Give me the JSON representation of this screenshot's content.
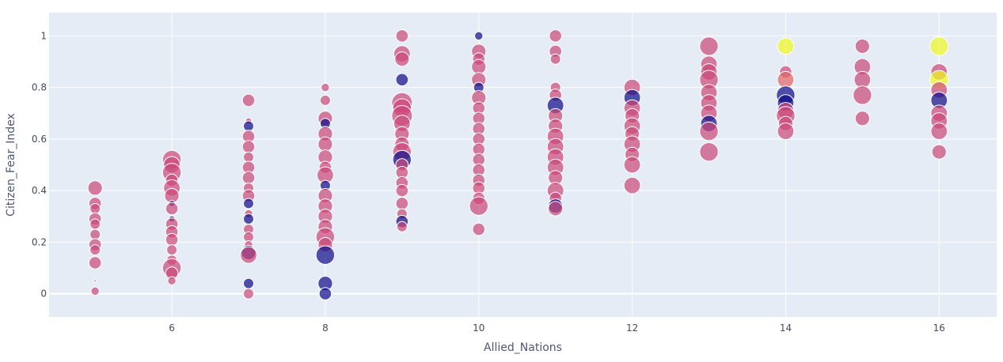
{
  "chart_data": {
    "type": "scatter",
    "xlabel": "Allied_Nations",
    "ylabel": "Citizen_Fear_Index",
    "xlim": [
      4.4,
      16.75
    ],
    "ylim": [
      -0.09,
      1.09
    ],
    "x_ticks": [
      6,
      8,
      10,
      12,
      14,
      16
    ],
    "x_tick_labels": [
      "6",
      "8",
      "10",
      "12",
      "14",
      "16"
    ],
    "y_ticks": [
      0,
      0.2,
      0.4,
      0.6,
      0.8,
      1
    ],
    "y_tick_labels": [
      "0",
      "0.2",
      "0.4",
      "0.6",
      "0.8",
      "1"
    ],
    "grid": true,
    "legend": "none",
    "colors": {
      "background": "#e5ecf6",
      "grid": "#ffffff",
      "pink": "#cc4778",
      "navy": "#0d0887",
      "yellow": "#f0f921",
      "orange": "#e16462"
    },
    "marker_size_range_px": "size encodes a hidden numeric variable",
    "points": [
      {
        "x": 5,
        "y": 0.41,
        "s": 0.7,
        "c": "pink"
      },
      {
        "x": 5,
        "y": 0.35,
        "s": 0.6,
        "c": "pink"
      },
      {
        "x": 5,
        "y": 0.33,
        "s": 0.5,
        "c": "pink"
      },
      {
        "x": 5,
        "y": 0.29,
        "s": 0.6,
        "c": "pink"
      },
      {
        "x": 5,
        "y": 0.27,
        "s": 0.5,
        "c": "pink"
      },
      {
        "x": 5,
        "y": 0.23,
        "s": 0.5,
        "c": "pink"
      },
      {
        "x": 5,
        "y": 0.19,
        "s": 0.6,
        "c": "pink"
      },
      {
        "x": 5,
        "y": 0.17,
        "s": 0.5,
        "c": "pink"
      },
      {
        "x": 5,
        "y": 0.12,
        "s": 0.6,
        "c": "pink"
      },
      {
        "x": 5,
        "y": 0.05,
        "s": 0.1,
        "c": "pink"
      },
      {
        "x": 5,
        "y": 0.01,
        "s": 0.4,
        "c": "pink"
      },
      {
        "x": 6,
        "y": 0.52,
        "s": 0.9,
        "c": "pink"
      },
      {
        "x": 6,
        "y": 0.5,
        "s": 0.8,
        "c": "pink"
      },
      {
        "x": 6,
        "y": 0.47,
        "s": 0.9,
        "c": "pink"
      },
      {
        "x": 6,
        "y": 0.44,
        "s": 0.6,
        "c": "pink"
      },
      {
        "x": 6,
        "y": 0.41,
        "s": 0.8,
        "c": "pink"
      },
      {
        "x": 6,
        "y": 0.38,
        "s": 0.7,
        "c": "pink"
      },
      {
        "x": 6,
        "y": 0.35,
        "s": 0.3,
        "c": "navy"
      },
      {
        "x": 6,
        "y": 0.33,
        "s": 0.6,
        "c": "pink"
      },
      {
        "x": 6,
        "y": 0.29,
        "s": 0.3,
        "c": "navy"
      },
      {
        "x": 6,
        "y": 0.27,
        "s": 0.6,
        "c": "pink"
      },
      {
        "x": 6,
        "y": 0.24,
        "s": 0.6,
        "c": "pink"
      },
      {
        "x": 6,
        "y": 0.21,
        "s": 0.6,
        "c": "pink"
      },
      {
        "x": 6,
        "y": 0.17,
        "s": 0.5,
        "c": "pink"
      },
      {
        "x": 6,
        "y": 0.13,
        "s": 0.5,
        "c": "pink"
      },
      {
        "x": 6,
        "y": 0.1,
        "s": 0.9,
        "c": "pink"
      },
      {
        "x": 6,
        "y": 0.08,
        "s": 0.6,
        "c": "pink"
      },
      {
        "x": 6,
        "y": 0.05,
        "s": 0.4,
        "c": "pink"
      },
      {
        "x": 7,
        "y": 0.75,
        "s": 0.6,
        "c": "pink"
      },
      {
        "x": 7,
        "y": 0.67,
        "s": 0.3,
        "c": "pink"
      },
      {
        "x": 7,
        "y": 0.65,
        "s": 0.5,
        "c": "navy"
      },
      {
        "x": 7,
        "y": 0.61,
        "s": 0.6,
        "c": "pink"
      },
      {
        "x": 7,
        "y": 0.57,
        "s": 0.6,
        "c": "pink"
      },
      {
        "x": 7,
        "y": 0.53,
        "s": 0.5,
        "c": "pink"
      },
      {
        "x": 7,
        "y": 0.49,
        "s": 0.6,
        "c": "pink"
      },
      {
        "x": 7,
        "y": 0.45,
        "s": 0.6,
        "c": "pink"
      },
      {
        "x": 7,
        "y": 0.41,
        "s": 0.5,
        "c": "pink"
      },
      {
        "x": 7,
        "y": 0.38,
        "s": 0.6,
        "c": "pink"
      },
      {
        "x": 7,
        "y": 0.35,
        "s": 0.5,
        "c": "navy"
      },
      {
        "x": 7,
        "y": 0.31,
        "s": 0.4,
        "c": "pink"
      },
      {
        "x": 7,
        "y": 0.29,
        "s": 0.5,
        "c": "navy"
      },
      {
        "x": 7,
        "y": 0.25,
        "s": 0.5,
        "c": "pink"
      },
      {
        "x": 7,
        "y": 0.22,
        "s": 0.5,
        "c": "pink"
      },
      {
        "x": 7,
        "y": 0.19,
        "s": 0.4,
        "c": "pink"
      },
      {
        "x": 7,
        "y": 0.16,
        "s": 0.7,
        "c": "navy"
      },
      {
        "x": 7,
        "y": 0.15,
        "s": 0.8,
        "c": "pink"
      },
      {
        "x": 7,
        "y": 0.04,
        "s": 0.5,
        "c": "navy"
      },
      {
        "x": 7,
        "y": 0.0,
        "s": 0.5,
        "c": "pink"
      },
      {
        "x": 8,
        "y": 0.8,
        "s": 0.4,
        "c": "pink"
      },
      {
        "x": 8,
        "y": 0.75,
        "s": 0.5,
        "c": "pink"
      },
      {
        "x": 8,
        "y": 0.68,
        "s": 0.7,
        "c": "pink"
      },
      {
        "x": 8,
        "y": 0.66,
        "s": 0.5,
        "c": "navy"
      },
      {
        "x": 8,
        "y": 0.62,
        "s": 0.7,
        "c": "pink"
      },
      {
        "x": 8,
        "y": 0.58,
        "s": 0.7,
        "c": "pink"
      },
      {
        "x": 8,
        "y": 0.53,
        "s": 0.7,
        "c": "pink"
      },
      {
        "x": 8,
        "y": 0.49,
        "s": 0.6,
        "c": "pink"
      },
      {
        "x": 8,
        "y": 0.46,
        "s": 0.8,
        "c": "pink"
      },
      {
        "x": 8,
        "y": 0.42,
        "s": 0.5,
        "c": "navy"
      },
      {
        "x": 8,
        "y": 0.38,
        "s": 0.7,
        "c": "pink"
      },
      {
        "x": 8,
        "y": 0.34,
        "s": 0.7,
        "c": "pink"
      },
      {
        "x": 8,
        "y": 0.3,
        "s": 0.7,
        "c": "pink"
      },
      {
        "x": 8,
        "y": 0.26,
        "s": 0.7,
        "c": "pink"
      },
      {
        "x": 8,
        "y": 0.22,
        "s": 0.9,
        "c": "pink"
      },
      {
        "x": 8,
        "y": 0.19,
        "s": 0.7,
        "c": "pink"
      },
      {
        "x": 8,
        "y": 0.15,
        "s": 0.9,
        "c": "navy"
      },
      {
        "x": 8,
        "y": 0.04,
        "s": 0.7,
        "c": "navy"
      },
      {
        "x": 8,
        "y": 0.0,
        "s": 0.6,
        "c": "navy"
      },
      {
        "x": 9,
        "y": 1.0,
        "s": 0.6,
        "c": "pink"
      },
      {
        "x": 9,
        "y": 0.93,
        "s": 0.8,
        "c": "pink"
      },
      {
        "x": 9,
        "y": 0.91,
        "s": 0.7,
        "c": "pink"
      },
      {
        "x": 9,
        "y": 0.83,
        "s": 0.6,
        "c": "navy"
      },
      {
        "x": 9,
        "y": 0.74,
        "s": 1.0,
        "c": "pink"
      },
      {
        "x": 9,
        "y": 0.72,
        "s": 0.9,
        "c": "pink"
      },
      {
        "x": 9,
        "y": 0.69,
        "s": 1.0,
        "c": "pink"
      },
      {
        "x": 9,
        "y": 0.66,
        "s": 0.8,
        "c": "pink"
      },
      {
        "x": 9,
        "y": 0.62,
        "s": 0.7,
        "c": "pink"
      },
      {
        "x": 9,
        "y": 0.58,
        "s": 0.7,
        "c": "pink"
      },
      {
        "x": 9,
        "y": 0.55,
        "s": 0.9,
        "c": "pink"
      },
      {
        "x": 9,
        "y": 0.52,
        "s": 0.9,
        "c": "navy"
      },
      {
        "x": 9,
        "y": 0.5,
        "s": 0.6,
        "c": "pink"
      },
      {
        "x": 9,
        "y": 0.47,
        "s": 0.6,
        "c": "pink"
      },
      {
        "x": 9,
        "y": 0.43,
        "s": 0.6,
        "c": "pink"
      },
      {
        "x": 9,
        "y": 0.4,
        "s": 0.6,
        "c": "pink"
      },
      {
        "x": 9,
        "y": 0.35,
        "s": 0.6,
        "c": "pink"
      },
      {
        "x": 9,
        "y": 0.31,
        "s": 0.5,
        "c": "pink"
      },
      {
        "x": 9,
        "y": 0.28,
        "s": 0.6,
        "c": "navy"
      },
      {
        "x": 9,
        "y": 0.26,
        "s": 0.5,
        "c": "pink"
      },
      {
        "x": 10,
        "y": 1.0,
        "s": 0.4,
        "c": "navy"
      },
      {
        "x": 10,
        "y": 0.94,
        "s": 0.7,
        "c": "pink"
      },
      {
        "x": 10,
        "y": 0.91,
        "s": 0.6,
        "c": "pink"
      },
      {
        "x": 10,
        "y": 0.88,
        "s": 0.7,
        "c": "pink"
      },
      {
        "x": 10,
        "y": 0.83,
        "s": 0.7,
        "c": "pink"
      },
      {
        "x": 10,
        "y": 0.8,
        "s": 0.5,
        "c": "navy"
      },
      {
        "x": 10,
        "y": 0.76,
        "s": 0.7,
        "c": "pink"
      },
      {
        "x": 10,
        "y": 0.72,
        "s": 0.6,
        "c": "pink"
      },
      {
        "x": 10,
        "y": 0.68,
        "s": 0.6,
        "c": "pink"
      },
      {
        "x": 10,
        "y": 0.64,
        "s": 0.6,
        "c": "pink"
      },
      {
        "x": 10,
        "y": 0.6,
        "s": 0.6,
        "c": "pink"
      },
      {
        "x": 10,
        "y": 0.56,
        "s": 0.6,
        "c": "pink"
      },
      {
        "x": 10,
        "y": 0.52,
        "s": 0.6,
        "c": "pink"
      },
      {
        "x": 10,
        "y": 0.48,
        "s": 0.6,
        "c": "pink"
      },
      {
        "x": 10,
        "y": 0.44,
        "s": 0.6,
        "c": "pink"
      },
      {
        "x": 10,
        "y": 0.41,
        "s": 0.6,
        "c": "pink"
      },
      {
        "x": 10,
        "y": 0.37,
        "s": 0.6,
        "c": "pink"
      },
      {
        "x": 10,
        "y": 0.34,
        "s": 0.9,
        "c": "pink"
      },
      {
        "x": 10,
        "y": 0.25,
        "s": 0.6,
        "c": "pink"
      },
      {
        "x": 11,
        "y": 1.0,
        "s": 0.6,
        "c": "pink"
      },
      {
        "x": 11,
        "y": 0.94,
        "s": 0.6,
        "c": "pink"
      },
      {
        "x": 11,
        "y": 0.91,
        "s": 0.5,
        "c": "pink"
      },
      {
        "x": 11,
        "y": 0.8,
        "s": 0.5,
        "c": "pink"
      },
      {
        "x": 11,
        "y": 0.77,
        "s": 0.6,
        "c": "pink"
      },
      {
        "x": 11,
        "y": 0.73,
        "s": 0.8,
        "c": "navy"
      },
      {
        "x": 11,
        "y": 0.69,
        "s": 0.7,
        "c": "pink"
      },
      {
        "x": 11,
        "y": 0.65,
        "s": 0.7,
        "c": "pink"
      },
      {
        "x": 11,
        "y": 0.61,
        "s": 0.8,
        "c": "pink"
      },
      {
        "x": 11,
        "y": 0.57,
        "s": 0.8,
        "c": "pink"
      },
      {
        "x": 11,
        "y": 0.53,
        "s": 0.8,
        "c": "pink"
      },
      {
        "x": 11,
        "y": 0.49,
        "s": 0.8,
        "c": "pink"
      },
      {
        "x": 11,
        "y": 0.45,
        "s": 0.7,
        "c": "pink"
      },
      {
        "x": 11,
        "y": 0.4,
        "s": 0.8,
        "c": "pink"
      },
      {
        "x": 11,
        "y": 0.37,
        "s": 0.6,
        "c": "pink"
      },
      {
        "x": 11,
        "y": 0.34,
        "s": 0.7,
        "c": "navy"
      },
      {
        "x": 11,
        "y": 0.33,
        "s": 0.7,
        "c": "pink"
      },
      {
        "x": 12,
        "y": 0.8,
        "s": 0.8,
        "c": "pink"
      },
      {
        "x": 12,
        "y": 0.76,
        "s": 0.8,
        "c": "navy"
      },
      {
        "x": 12,
        "y": 0.72,
        "s": 0.8,
        "c": "pink"
      },
      {
        "x": 12,
        "y": 0.69,
        "s": 0.7,
        "c": "pink"
      },
      {
        "x": 12,
        "y": 0.65,
        "s": 0.8,
        "c": "pink"
      },
      {
        "x": 12,
        "y": 0.62,
        "s": 0.7,
        "c": "pink"
      },
      {
        "x": 12,
        "y": 0.58,
        "s": 0.8,
        "c": "pink"
      },
      {
        "x": 12,
        "y": 0.54,
        "s": 0.7,
        "c": "pink"
      },
      {
        "x": 12,
        "y": 0.5,
        "s": 0.8,
        "c": "pink"
      },
      {
        "x": 12,
        "y": 0.42,
        "s": 0.8,
        "c": "pink"
      },
      {
        "x": 13,
        "y": 0.96,
        "s": 0.9,
        "c": "pink"
      },
      {
        "x": 13,
        "y": 0.89,
        "s": 0.8,
        "c": "pink"
      },
      {
        "x": 13,
        "y": 0.86,
        "s": 0.8,
        "c": "pink"
      },
      {
        "x": 13,
        "y": 0.83,
        "s": 0.9,
        "c": "pink"
      },
      {
        "x": 13,
        "y": 0.78,
        "s": 0.8,
        "c": "pink"
      },
      {
        "x": 13,
        "y": 0.74,
        "s": 0.8,
        "c": "pink"
      },
      {
        "x": 13,
        "y": 0.7,
        "s": 0.8,
        "c": "pink"
      },
      {
        "x": 13,
        "y": 0.66,
        "s": 0.8,
        "c": "navy"
      },
      {
        "x": 13,
        "y": 0.63,
        "s": 0.9,
        "c": "pink"
      },
      {
        "x": 13,
        "y": 0.55,
        "s": 0.9,
        "c": "pink"
      },
      {
        "x": 14,
        "y": 0.96,
        "s": 0.8,
        "c": "yellow"
      },
      {
        "x": 14,
        "y": 0.86,
        "s": 0.6,
        "c": "pink"
      },
      {
        "x": 14,
        "y": 0.83,
        "s": 0.8,
        "c": "orange"
      },
      {
        "x": 14,
        "y": 0.77,
        "s": 0.9,
        "c": "navy"
      },
      {
        "x": 14,
        "y": 0.74,
        "s": 0.8,
        "c": "navy"
      },
      {
        "x": 14,
        "y": 0.71,
        "s": 0.8,
        "c": "pink"
      },
      {
        "x": 14,
        "y": 0.69,
        "s": 0.9,
        "c": "pink"
      },
      {
        "x": 14,
        "y": 0.66,
        "s": 0.7,
        "c": "pink"
      },
      {
        "x": 14,
        "y": 0.63,
        "s": 0.8,
        "c": "pink"
      },
      {
        "x": 15,
        "y": 0.96,
        "s": 0.7,
        "c": "pink"
      },
      {
        "x": 15,
        "y": 0.88,
        "s": 0.8,
        "c": "pink"
      },
      {
        "x": 15,
        "y": 0.83,
        "s": 0.8,
        "c": "pink"
      },
      {
        "x": 15,
        "y": 0.77,
        "s": 0.9,
        "c": "pink"
      },
      {
        "x": 15,
        "y": 0.68,
        "s": 0.7,
        "c": "pink"
      },
      {
        "x": 16,
        "y": 0.96,
        "s": 0.9,
        "c": "yellow"
      },
      {
        "x": 16,
        "y": 0.86,
        "s": 0.8,
        "c": "pink"
      },
      {
        "x": 16,
        "y": 0.83,
        "s": 0.9,
        "c": "yellow"
      },
      {
        "x": 16,
        "y": 0.79,
        "s": 0.8,
        "c": "pink"
      },
      {
        "x": 16,
        "y": 0.75,
        "s": 0.8,
        "c": "navy"
      },
      {
        "x": 16,
        "y": 0.7,
        "s": 0.8,
        "c": "pink"
      },
      {
        "x": 16,
        "y": 0.67,
        "s": 0.8,
        "c": "pink"
      },
      {
        "x": 16,
        "y": 0.63,
        "s": 0.8,
        "c": "pink"
      },
      {
        "x": 16,
        "y": 0.55,
        "s": 0.7,
        "c": "pink"
      }
    ]
  }
}
